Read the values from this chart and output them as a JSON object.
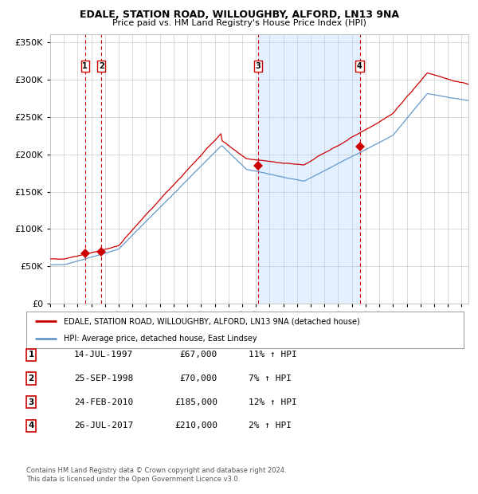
{
  "title": "EDALE, STATION ROAD, WILLOUGHBY, ALFORD, LN13 9NA",
  "subtitle": "Price paid vs. HM Land Registry's House Price Index (HPI)",
  "legend_line1": "EDALE, STATION ROAD, WILLOUGHBY, ALFORD, LN13 9NA (detached house)",
  "legend_line2": "HPI: Average price, detached house, East Lindsey",
  "footer1": "Contains HM Land Registry data © Crown copyright and database right 2024.",
  "footer2": "This data is licensed under the Open Government Licence v3.0.",
  "transactions": [
    {
      "num": 1,
      "date": "14-JUL-1997",
      "price": 67000,
      "pct": "11%",
      "dir": "↑",
      "year": 1997.54
    },
    {
      "num": 2,
      "date": "25-SEP-1998",
      "price": 70000,
      "pct": "7%",
      "dir": "↑",
      "year": 1998.73
    },
    {
      "num": 3,
      "date": "24-FEB-2010",
      "price": 185000,
      "pct": "12%",
      "dir": "↑",
      "year": 2010.15
    },
    {
      "num": 4,
      "date": "26-JUL-2017",
      "price": 210000,
      "pct": "2%",
      "dir": "↑",
      "year": 2017.57
    }
  ],
  "hpi_shaded_start": 2010.15,
  "hpi_shaded_end": 2017.57,
  "red_color": "#cc0000",
  "blue_color": "#6699cc",
  "blue_fill": "#ddeeff",
  "ylim": [
    0,
    360000
  ],
  "xlim_start": 1995.0,
  "xlim_end": 2025.5
}
